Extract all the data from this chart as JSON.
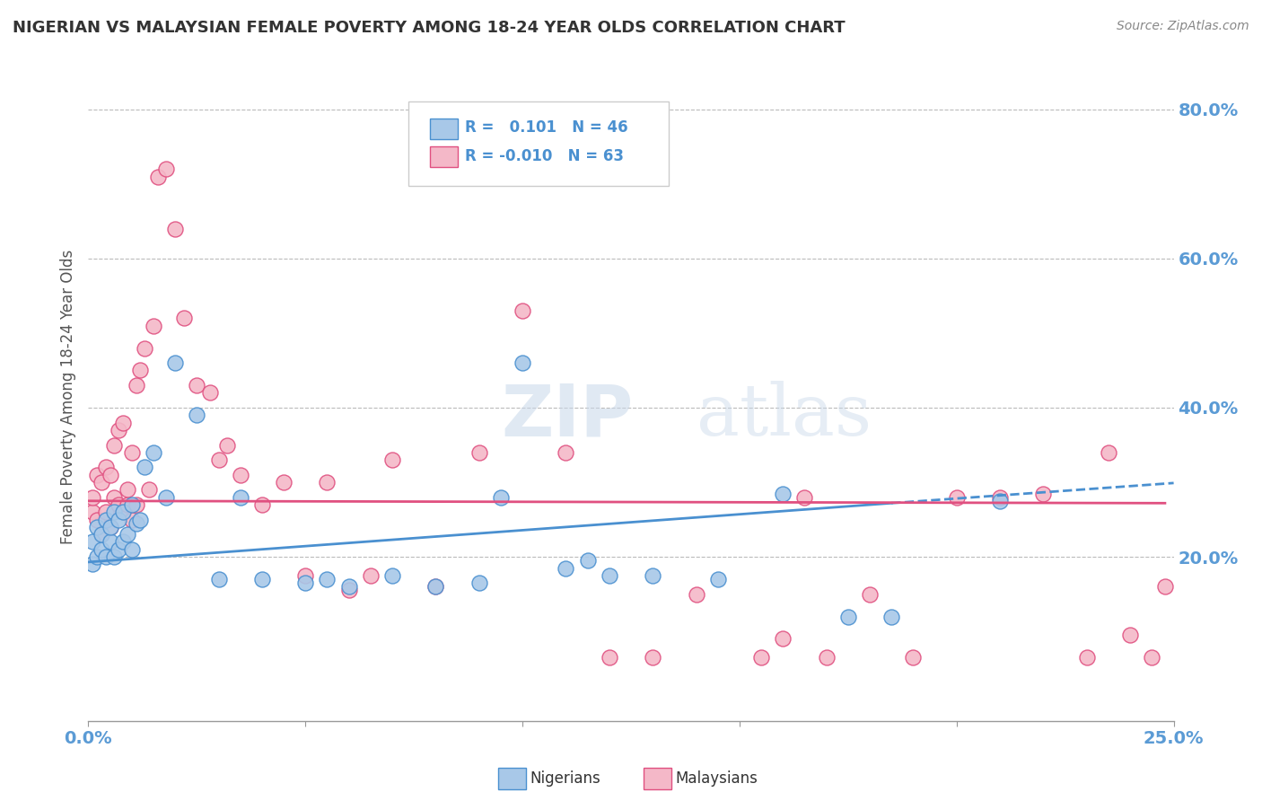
{
  "title": "NIGERIAN VS MALAYSIAN FEMALE POVERTY AMONG 18-24 YEAR OLDS CORRELATION CHART",
  "source": "Source: ZipAtlas.com",
  "ylabel": "Female Poverty Among 18-24 Year Olds",
  "xlim": [
    0.0,
    0.25
  ],
  "ylim": [
    -0.02,
    0.85
  ],
  "right_yticks": [
    0.2,
    0.4,
    0.6,
    0.8
  ],
  "right_yticklabels": [
    "20.0%",
    "40.0%",
    "60.0%",
    "80.0%"
  ],
  "xticks": [
    0.0,
    0.05,
    0.1,
    0.15,
    0.2,
    0.25
  ],
  "xticklabels": [
    "0.0%",
    "",
    "",
    "",
    "",
    "25.0%"
  ],
  "nigerian_color": "#a8c8e8",
  "malaysian_color": "#f4b8c8",
  "trendline_nigerian_color": "#4a90d0",
  "trendline_malaysian_color": "#e05080",
  "R_nigerian": 0.101,
  "N_nigerian": 46,
  "R_malaysian": -0.01,
  "N_malaysian": 63,
  "watermark": "ZIPatlas",
  "nigerian_x": [
    0.001,
    0.001,
    0.002,
    0.002,
    0.003,
    0.003,
    0.004,
    0.004,
    0.005,
    0.005,
    0.006,
    0.006,
    0.007,
    0.007,
    0.008,
    0.008,
    0.009,
    0.01,
    0.01,
    0.011,
    0.012,
    0.013,
    0.015,
    0.018,
    0.02,
    0.025,
    0.03,
    0.035,
    0.04,
    0.05,
    0.055,
    0.06,
    0.07,
    0.08,
    0.09,
    0.095,
    0.1,
    0.11,
    0.115,
    0.12,
    0.13,
    0.145,
    0.16,
    0.175,
    0.185,
    0.21
  ],
  "nigerian_y": [
    0.19,
    0.22,
    0.2,
    0.24,
    0.21,
    0.23,
    0.2,
    0.25,
    0.22,
    0.24,
    0.2,
    0.26,
    0.21,
    0.25,
    0.22,
    0.26,
    0.23,
    0.21,
    0.27,
    0.245,
    0.25,
    0.32,
    0.34,
    0.28,
    0.46,
    0.39,
    0.17,
    0.28,
    0.17,
    0.165,
    0.17,
    0.16,
    0.175,
    0.16,
    0.165,
    0.28,
    0.46,
    0.185,
    0.195,
    0.175,
    0.175,
    0.17,
    0.285,
    0.12,
    0.12,
    0.275
  ],
  "malaysian_x": [
    0.001,
    0.001,
    0.002,
    0.002,
    0.003,
    0.003,
    0.004,
    0.004,
    0.005,
    0.005,
    0.006,
    0.006,
    0.007,
    0.007,
    0.008,
    0.008,
    0.009,
    0.009,
    0.01,
    0.01,
    0.011,
    0.011,
    0.012,
    0.013,
    0.014,
    0.015,
    0.016,
    0.018,
    0.02,
    0.022,
    0.025,
    0.028,
    0.03,
    0.032,
    0.035,
    0.04,
    0.045,
    0.05,
    0.055,
    0.06,
    0.065,
    0.07,
    0.08,
    0.09,
    0.1,
    0.11,
    0.12,
    0.13,
    0.14,
    0.155,
    0.16,
    0.165,
    0.17,
    0.18,
    0.19,
    0.2,
    0.21,
    0.22,
    0.23,
    0.235,
    0.24,
    0.245,
    0.248
  ],
  "malaysian_y": [
    0.26,
    0.28,
    0.25,
    0.31,
    0.23,
    0.3,
    0.26,
    0.32,
    0.24,
    0.31,
    0.28,
    0.35,
    0.27,
    0.37,
    0.26,
    0.38,
    0.27,
    0.29,
    0.25,
    0.34,
    0.27,
    0.43,
    0.45,
    0.48,
    0.29,
    0.51,
    0.71,
    0.72,
    0.64,
    0.52,
    0.43,
    0.42,
    0.33,
    0.35,
    0.31,
    0.27,
    0.3,
    0.175,
    0.3,
    0.155,
    0.175,
    0.33,
    0.16,
    0.34,
    0.53,
    0.34,
    0.065,
    0.065,
    0.15,
    0.065,
    0.09,
    0.28,
    0.065,
    0.15,
    0.065,
    0.28,
    0.28,
    0.285,
    0.065,
    0.34,
    0.095,
    0.065,
    0.16
  ],
  "trendline_nig_x0": 0.0,
  "trendline_nig_y0": 0.193,
  "trendline_nig_x1": 0.185,
  "trendline_nig_y1": 0.272,
  "trendline_nig_dash_x0": 0.185,
  "trendline_nig_dash_y0": 0.272,
  "trendline_nig_dash_x1": 0.25,
  "trendline_nig_dash_y1": 0.299,
  "trendline_mal_x0": 0.0,
  "trendline_mal_y0": 0.275,
  "trendline_mal_x1": 0.248,
  "trendline_mal_y1": 0.272,
  "background_color": "#ffffff",
  "grid_color": "#bbbbbb",
  "title_color": "#333333",
  "tick_color": "#5b9bd5"
}
